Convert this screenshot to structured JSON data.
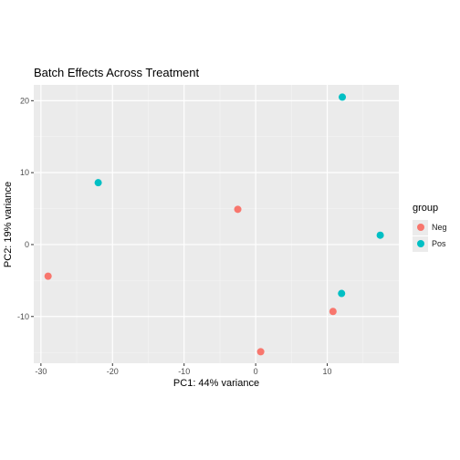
{
  "chart_data": {
    "type": "scatter",
    "title": "Batch Effects Across Treatment",
    "xlabel": "PC1: 44% variance",
    "ylabel": "PC2: 19% variance",
    "xlim": [
      -31,
      20
    ],
    "ylim": [
      -16.5,
      22.2
    ],
    "x_ticks": [
      -30,
      -20,
      -10,
      0,
      10
    ],
    "y_ticks": [
      -10,
      0,
      10,
      20
    ],
    "grid": true,
    "legend": {
      "title": "group",
      "placement": "right"
    },
    "series": [
      {
        "name": "Neg",
        "color": "#F8766D",
        "points": [
          {
            "x": -29.0,
            "y": -4.4
          },
          {
            "x": -2.5,
            "y": 4.9
          },
          {
            "x": 10.8,
            "y": -9.3
          },
          {
            "x": 0.7,
            "y": -14.9
          }
        ]
      },
      {
        "name": "Pos",
        "color": "#00BFC4",
        "points": [
          {
            "x": -22.0,
            "y": 8.6
          },
          {
            "x": 12.1,
            "y": 20.5
          },
          {
            "x": 17.4,
            "y": 1.3
          },
          {
            "x": 12.0,
            "y": -6.8
          }
        ]
      }
    ]
  }
}
